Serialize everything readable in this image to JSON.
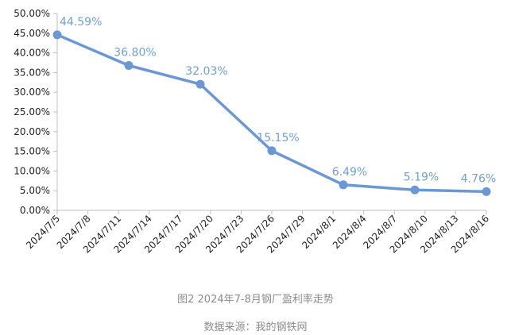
{
  "figure_caption": "图2  2024年7-8月钢厂盈利率走势",
  "source_note": "数据来源：我的钢铁网",
  "chart_data": {
    "type": "line",
    "title": "",
    "xlabel": "",
    "ylabel": "",
    "grid": false,
    "legend": "none",
    "color": "#6a97d6",
    "x_tick_labels": [
      "2024/7/5",
      "2024/7/8",
      "2024/7/11",
      "2024/7/14",
      "2024/7/17",
      "2024/7/20",
      "2024/7/23",
      "2024/7/26",
      "2024/7/29",
      "2024/8/1",
      "2024/8/4",
      "2024/8/7",
      "2024/8/10",
      "2024/8/13",
      "2024/8/16"
    ],
    "y_tick_labels": [
      "0.00%",
      "5.00%",
      "10.00%",
      "15.00%",
      "20.00%",
      "25.00%",
      "30.00%",
      "35.00%",
      "40.00%",
      "45.00%",
      "50.00%"
    ],
    "ylim": [
      0,
      50
    ],
    "x": [
      "2024/7/5",
      "2024/7/12",
      "2024/7/19",
      "2024/7/26",
      "2024/8/2",
      "2024/8/9",
      "2024/8/16"
    ],
    "values": [
      44.59,
      36.8,
      32.03,
      15.15,
      6.49,
      5.19,
      4.76
    ],
    "value_labels": [
      "44.59%",
      "36.80%",
      "32.03%",
      "15.15%",
      "6.49%",
      "5.19%",
      "4.76%"
    ]
  }
}
